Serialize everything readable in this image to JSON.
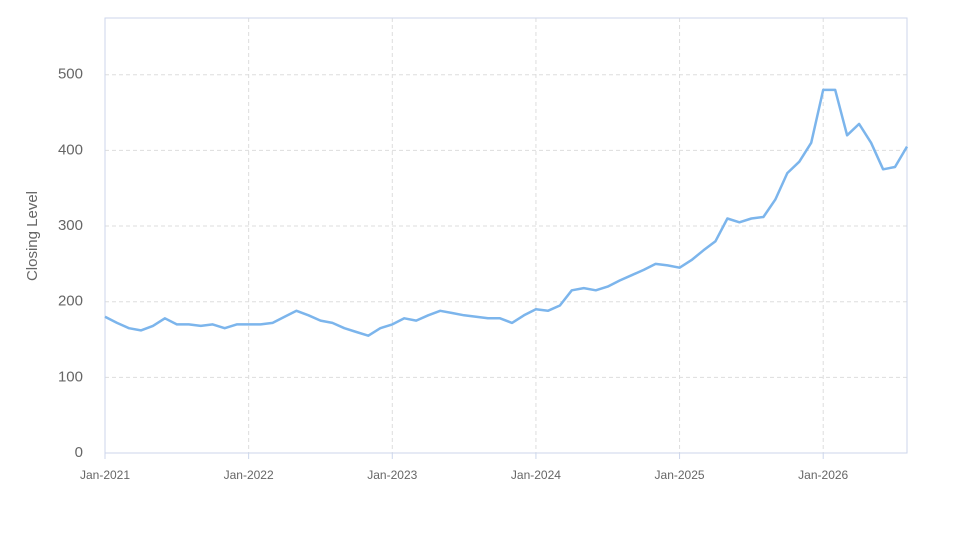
{
  "chart_data": {
    "type": "line",
    "y_label": "Closing Level",
    "x": [
      "2021-01",
      "2021-02",
      "2021-03",
      "2021-04",
      "2021-05",
      "2021-06",
      "2021-07",
      "2021-08",
      "2021-09",
      "2021-10",
      "2021-11",
      "2021-12",
      "2022-01",
      "2022-02",
      "2022-03",
      "2022-04",
      "2022-05",
      "2022-06",
      "2022-07",
      "2022-08",
      "2022-09",
      "2022-10",
      "2022-11",
      "2022-12",
      "2023-01",
      "2023-02",
      "2023-03",
      "2023-04",
      "2023-05",
      "2023-06",
      "2023-07",
      "2023-08",
      "2023-09",
      "2023-10",
      "2023-11",
      "2023-12",
      "2024-01",
      "2024-02",
      "2024-03",
      "2024-04",
      "2024-05",
      "2024-06",
      "2024-07",
      "2024-08",
      "2024-09",
      "2024-10",
      "2024-11",
      "2024-12",
      "2025-01",
      "2025-02",
      "2025-03",
      "2025-04",
      "2025-05",
      "2025-06",
      "2025-07",
      "2025-08",
      "2025-09",
      "2025-10",
      "2025-11",
      "2025-12",
      "2026-01",
      "2026-02",
      "2026-03",
      "2026-04",
      "2026-05",
      "2026-06",
      "2026-07",
      "2026-08"
    ],
    "values": [
      180,
      172,
      165,
      162,
      168,
      178,
      170,
      170,
      168,
      170,
      165,
      170,
      170,
      170,
      172,
      180,
      188,
      182,
      175,
      172,
      165,
      160,
      155,
      165,
      170,
      178,
      175,
      182,
      188,
      185,
      182,
      180,
      178,
      178,
      172,
      182,
      190,
      188,
      195,
      215,
      218,
      215,
      220,
      228,
      235,
      242,
      250,
      248,
      245,
      255,
      268,
      280,
      310,
      305,
      310,
      312,
      335,
      370,
      385,
      410,
      480,
      480,
      420,
      435,
      410,
      375,
      378,
      405
    ],
    "color": "#7cb5ec",
    "xlim": [
      "2021-01",
      "2026-08"
    ],
    "xticks": [
      {
        "value": "2021-01",
        "label": "Jan-2021"
      },
      {
        "value": "2022-01",
        "label": "Jan-2022"
      },
      {
        "value": "2023-01",
        "label": "Jan-2023"
      },
      {
        "value": "2024-01",
        "label": "Jan-2024"
      },
      {
        "value": "2025-01",
        "label": "Jan-2025"
      },
      {
        "value": "2026-01",
        "label": "Jan-2026"
      }
    ],
    "ylim": [
      0,
      575
    ],
    "yticks": [
      0,
      100,
      200,
      300,
      400,
      500
    ],
    "grid": true
  }
}
